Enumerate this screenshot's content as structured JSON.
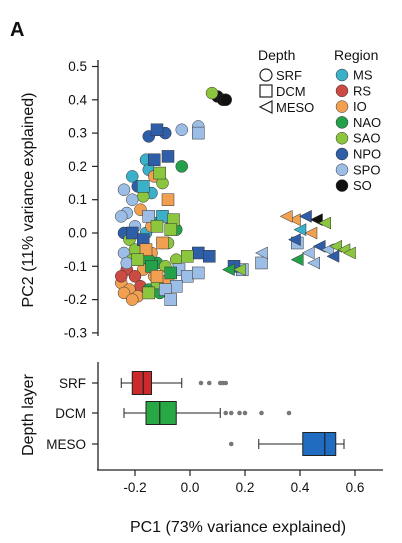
{
  "panel_label": "A",
  "chart_data": [
    {
      "type": "scatter",
      "xlabel": "PC1 (73% variance explained)",
      "ylabel": "PC2 (11% variance explained)",
      "xlim": [
        -0.33,
        0.69
      ],
      "ylim": [
        -0.3,
        0.5
      ],
      "y_ticks": [
        "0.5",
        "0.4",
        "0.3",
        "0.2",
        "0.1",
        "0.0",
        "-0.1",
        "-0.2",
        "-0.3"
      ],
      "y_tick_values": [
        0.5,
        0.4,
        0.3,
        0.2,
        0.1,
        0.0,
        -0.1,
        -0.2,
        -0.3
      ],
      "legend_depth": {
        "title": "Depth",
        "items": [
          {
            "label": "SRF",
            "shape": "circle"
          },
          {
            "label": "DCM",
            "shape": "square"
          },
          {
            "label": "MESO",
            "shape": "triangle"
          }
        ]
      },
      "legend_region": {
        "title": "Region",
        "items": [
          {
            "label": "MS",
            "color": "#3bb0c9"
          },
          {
            "label": "RS",
            "color": "#cc4a44"
          },
          {
            "label": "IO",
            "color": "#f0a050"
          },
          {
            "label": "NAO",
            "color": "#22a04a"
          },
          {
            "label": "SAO",
            "color": "#8cc63f"
          },
          {
            "label": "NPO",
            "color": "#2e5ea8"
          },
          {
            "label": "SPO",
            "color": "#9bbde6"
          },
          {
            "label": "SO",
            "color": "#111111"
          }
        ]
      },
      "points": [
        {
          "x": -0.15,
          "y": 0.29,
          "d": "SRF",
          "r": "NPO"
        },
        {
          "x": -0.09,
          "y": 0.3,
          "d": "SRF",
          "r": "NPO"
        },
        {
          "x": -0.03,
          "y": 0.31,
          "d": "SRF",
          "r": "SPO"
        },
        {
          "x": 0.03,
          "y": 0.32,
          "d": "SRF",
          "r": "SPO"
        },
        {
          "x": -0.03,
          "y": 0.2,
          "d": "SRF",
          "r": "NAO"
        },
        {
          "x": -0.16,
          "y": 0.22,
          "d": "SRF",
          "r": "MS"
        },
        {
          "x": -0.15,
          "y": 0.19,
          "d": "SRF",
          "r": "MS"
        },
        {
          "x": -0.21,
          "y": 0.17,
          "d": "SRF",
          "r": "MS"
        },
        {
          "x": -0.13,
          "y": 0.17,
          "d": "SRF",
          "r": "IO"
        },
        {
          "x": -0.19,
          "y": 0.14,
          "d": "SRF",
          "r": "NPO"
        },
        {
          "x": -0.1,
          "y": 0.15,
          "d": "SRF",
          "r": "SAO"
        },
        {
          "x": -0.14,
          "y": 0.12,
          "d": "SRF",
          "r": "MS"
        },
        {
          "x": -0.24,
          "y": 0.13,
          "d": "SRF",
          "r": "SPO"
        },
        {
          "x": -0.17,
          "y": 0.11,
          "d": "SRF",
          "r": "SAO"
        },
        {
          "x": -0.21,
          "y": 0.1,
          "d": "SRF",
          "r": "SPO"
        },
        {
          "x": -0.18,
          "y": 0.07,
          "d": "SRF",
          "r": "IO"
        },
        {
          "x": -0.23,
          "y": 0.06,
          "d": "SRF",
          "r": "SPO"
        },
        {
          "x": -0.1,
          "y": 0.05,
          "d": "SRF",
          "r": "NAO"
        },
        {
          "x": -0.13,
          "y": 0.03,
          "d": "SRF",
          "r": "NAO"
        },
        {
          "x": -0.07,
          "y": 0.04,
          "d": "SRF",
          "r": "SAO"
        },
        {
          "x": -0.2,
          "y": 0.02,
          "d": "SRF",
          "r": "SPO"
        },
        {
          "x": -0.25,
          "y": 0.05,
          "d": "SRF",
          "r": "SPO"
        },
        {
          "x": -0.24,
          "y": 0.0,
          "d": "SRF",
          "r": "NPO"
        },
        {
          "x": -0.16,
          "y": 0.0,
          "d": "SRF",
          "r": "MS"
        },
        {
          "x": -0.22,
          "y": -0.02,
          "d": "SRF",
          "r": "SAO"
        },
        {
          "x": -0.1,
          "y": -0.03,
          "d": "SRF",
          "r": "SAO"
        },
        {
          "x": -0.18,
          "y": -0.05,
          "d": "SRF",
          "r": "IO"
        },
        {
          "x": -0.24,
          "y": -0.06,
          "d": "SRF",
          "r": "SPO"
        },
        {
          "x": -0.14,
          "y": -0.06,
          "d": "SRF",
          "r": "IO"
        },
        {
          "x": -0.21,
          "y": -0.08,
          "d": "SRF",
          "r": "SAO"
        },
        {
          "x": -0.12,
          "y": -0.09,
          "d": "SRF",
          "r": "NAO"
        },
        {
          "x": -0.23,
          "y": -0.11,
          "d": "SRF",
          "r": "RS"
        },
        {
          "x": -0.17,
          "y": -0.11,
          "d": "SRF",
          "r": "IO"
        },
        {
          "x": -0.09,
          "y": -0.1,
          "d": "SRF",
          "r": "SAO"
        },
        {
          "x": -0.2,
          "y": -0.13,
          "d": "SRF",
          "r": "RS"
        },
        {
          "x": -0.13,
          "y": -0.13,
          "d": "SRF",
          "r": "IO"
        },
        {
          "x": -0.25,
          "y": -0.15,
          "d": "SRF",
          "r": "IO"
        },
        {
          "x": -0.18,
          "y": -0.16,
          "d": "SRF",
          "r": "RS"
        },
        {
          "x": -0.15,
          "y": -0.17,
          "d": "SRF",
          "r": "NAO"
        },
        {
          "x": -0.22,
          "y": -0.17,
          "d": "SRF",
          "r": "IO"
        },
        {
          "x": -0.24,
          "y": -0.18,
          "d": "SRF",
          "r": "IO"
        },
        {
          "x": -0.11,
          "y": -0.18,
          "d": "SRF",
          "r": "NAO"
        },
        {
          "x": -0.19,
          "y": -0.19,
          "d": "SRF",
          "r": "IO"
        },
        {
          "x": -0.21,
          "y": -0.2,
          "d": "SRF",
          "r": "IO"
        },
        {
          "x": -0.08,
          "y": -0.03,
          "d": "SRF",
          "r": "SAO"
        },
        {
          "x": -0.05,
          "y": -0.08,
          "d": "SRF",
          "r": "SAO"
        },
        {
          "x": -0.15,
          "y": -0.08,
          "d": "SRF",
          "r": "NAO"
        },
        {
          "x": -0.2,
          "y": -0.05,
          "d": "SRF",
          "r": "SAO"
        },
        {
          "x": -0.23,
          "y": -0.09,
          "d": "SRF",
          "r": "SPO"
        },
        {
          "x": -0.12,
          "y": -0.15,
          "d": "SRF",
          "r": "SAO"
        },
        {
          "x": -0.08,
          "y": -0.14,
          "d": "SRF",
          "r": "IO"
        },
        {
          "x": -0.25,
          "y": -0.13,
          "d": "SRF",
          "r": "RS"
        },
        {
          "x": -0.05,
          "y": 0.01,
          "d": "SRF",
          "r": "NAO"
        },
        {
          "x": -0.14,
          "y": 0.02,
          "d": "SRF",
          "r": "IO"
        },
        {
          "x": 0.1,
          "y": 0.41,
          "d": "SRF",
          "r": "SO"
        },
        {
          "x": 0.12,
          "y": 0.4,
          "d": "SRF",
          "r": "SO"
        },
        {
          "x": 0.13,
          "y": 0.4,
          "d": "SRF",
          "r": "SO"
        },
        {
          "x": 0.08,
          "y": 0.42,
          "d": "SRF",
          "r": "SAO"
        },
        {
          "x": -0.12,
          "y": 0.31,
          "d": "DCM",
          "r": "NPO"
        },
        {
          "x": 0.03,
          "y": 0.3,
          "d": "DCM",
          "r": "SPO"
        },
        {
          "x": -0.08,
          "y": 0.23,
          "d": "DCM",
          "r": "NPO"
        },
        {
          "x": -0.13,
          "y": 0.22,
          "d": "DCM",
          "r": "NPO"
        },
        {
          "x": -0.11,
          "y": 0.18,
          "d": "DCM",
          "r": "SAO"
        },
        {
          "x": -0.17,
          "y": 0.14,
          "d": "DCM",
          "r": "MS"
        },
        {
          "x": -0.08,
          "y": 0.1,
          "d": "DCM",
          "r": "IO"
        },
        {
          "x": -0.1,
          "y": 0.05,
          "d": "DCM",
          "r": "MS"
        },
        {
          "x": -0.06,
          "y": 0.04,
          "d": "DCM",
          "r": "SAO"
        },
        {
          "x": -0.15,
          "y": 0.05,
          "d": "DCM",
          "r": "SPO"
        },
        {
          "x": -0.12,
          "y": 0.02,
          "d": "DCM",
          "r": "SAO"
        },
        {
          "x": -0.07,
          "y": 0.01,
          "d": "DCM",
          "r": "SAO"
        },
        {
          "x": -0.21,
          "y": 0.0,
          "d": "DCM",
          "r": "NPO"
        },
        {
          "x": -0.17,
          "y": -0.02,
          "d": "DCM",
          "r": "NPO"
        },
        {
          "x": -0.1,
          "y": -0.03,
          "d": "DCM",
          "r": "IO"
        },
        {
          "x": 0.03,
          "y": -0.06,
          "d": "DCM",
          "r": "NPO"
        },
        {
          "x": -0.01,
          "y": -0.07,
          "d": "DCM",
          "r": "SAO"
        },
        {
          "x": 0.07,
          "y": -0.07,
          "d": "DCM",
          "r": "NPO"
        },
        {
          "x": -0.04,
          "y": -0.11,
          "d": "DCM",
          "r": "SPO"
        },
        {
          "x": -0.16,
          "y": -0.05,
          "d": "DCM",
          "r": "IO"
        },
        {
          "x": -0.19,
          "y": -0.08,
          "d": "DCM",
          "r": "SAO"
        },
        {
          "x": -0.14,
          "y": -0.1,
          "d": "DCM",
          "r": "NAO"
        },
        {
          "x": -0.07,
          "y": -0.12,
          "d": "DCM",
          "r": "NAO"
        },
        {
          "x": -0.12,
          "y": -0.13,
          "d": "DCM",
          "r": "IO"
        },
        {
          "x": -0.01,
          "y": -0.13,
          "d": "DCM",
          "r": "SPO"
        },
        {
          "x": 0.03,
          "y": -0.12,
          "d": "DCM",
          "r": "SPO"
        },
        {
          "x": -0.05,
          "y": -0.16,
          "d": "DCM",
          "r": "SPO"
        },
        {
          "x": -0.09,
          "y": -0.17,
          "d": "DCM",
          "r": "SPO"
        },
        {
          "x": -0.07,
          "y": -0.2,
          "d": "DCM",
          "r": "SPO"
        },
        {
          "x": -0.15,
          "y": -0.18,
          "d": "DCM",
          "r": "SAO"
        },
        {
          "x": 0.19,
          "y": -0.11,
          "d": "DCM",
          "r": "SPO"
        },
        {
          "x": 0.16,
          "y": -0.1,
          "d": "DCM",
          "r": "NPO"
        },
        {
          "x": 0.26,
          "y": -0.09,
          "d": "DCM",
          "r": "SPO"
        },
        {
          "x": 0.39,
          "y": -0.03,
          "d": "DCM",
          "r": "SPO"
        },
        {
          "x": 0.14,
          "y": -0.11,
          "d": "MESO",
          "r": "NAO"
        },
        {
          "x": 0.18,
          "y": -0.11,
          "d": "MESO",
          "r": "SAO"
        },
        {
          "x": 0.26,
          "y": -0.06,
          "d": "MESO",
          "r": "SPO"
        },
        {
          "x": 0.38,
          "y": 0.04,
          "d": "MESO",
          "r": "IO"
        },
        {
          "x": 0.42,
          "y": 0.05,
          "d": "MESO",
          "r": "NPO"
        },
        {
          "x": 0.46,
          "y": 0.04,
          "d": "MESO",
          "r": "SO"
        },
        {
          "x": 0.49,
          "y": 0.03,
          "d": "MESO",
          "r": "SAO"
        },
        {
          "x": 0.4,
          "y": 0.01,
          "d": "MESO",
          "r": "MS"
        },
        {
          "x": 0.44,
          "y": 0.0,
          "d": "MESO",
          "r": "IO"
        },
        {
          "x": 0.38,
          "y": -0.02,
          "d": "MESO",
          "r": "NPO"
        },
        {
          "x": 0.47,
          "y": -0.04,
          "d": "MESO",
          "r": "NPO"
        },
        {
          "x": 0.5,
          "y": -0.05,
          "d": "MESO",
          "r": "SPO"
        },
        {
          "x": 0.53,
          "y": -0.04,
          "d": "MESO",
          "r": "SAO"
        },
        {
          "x": 0.56,
          "y": -0.05,
          "d": "MESO",
          "r": "SAO"
        },
        {
          "x": 0.52,
          "y": -0.07,
          "d": "MESO",
          "r": "NPO"
        },
        {
          "x": 0.58,
          "y": -0.06,
          "d": "MESO",
          "r": "SAO"
        },
        {
          "x": 0.43,
          "y": -0.06,
          "d": "MESO",
          "r": "SPO"
        },
        {
          "x": 0.39,
          "y": -0.08,
          "d": "MESO",
          "r": "NAO"
        },
        {
          "x": 0.45,
          "y": -0.09,
          "d": "MESO",
          "r": "SPO"
        },
        {
          "x": 0.35,
          "y": 0.05,
          "d": "MESO",
          "r": "IO"
        }
      ]
    },
    {
      "type": "box",
      "ylabel": "Depth layer",
      "xlim": [
        -0.33,
        0.69
      ],
      "x_ticks": [
        "-0.2",
        "0.0",
        "0.2",
        "0.4",
        "0.6"
      ],
      "x_tick_values": [
        -0.2,
        0.0,
        0.2,
        0.4,
        0.6
      ],
      "boxes": [
        {
          "label": "SRF",
          "color": "#cc2a2a",
          "whisker_low": -0.25,
          "q1": -0.21,
          "median": -0.17,
          "q3": -0.14,
          "whisker_high": -0.03,
          "outliers": [
            0.04,
            0.07,
            0.11,
            0.12,
            0.13
          ]
        },
        {
          "label": "DCM",
          "color": "#27a844",
          "whisker_low": -0.24,
          "q1": -0.16,
          "median": -0.11,
          "q3": -0.05,
          "whisker_high": 0.11,
          "outliers": [
            0.13,
            0.15,
            0.18,
            0.2,
            0.26,
            0.36
          ]
        },
        {
          "label": "MESO",
          "color": "#1f6cc0",
          "whisker_low": 0.25,
          "q1": 0.41,
          "median": 0.49,
          "q3": 0.53,
          "whisker_high": 0.56,
          "outliers": [
            0.15
          ]
        }
      ]
    }
  ]
}
